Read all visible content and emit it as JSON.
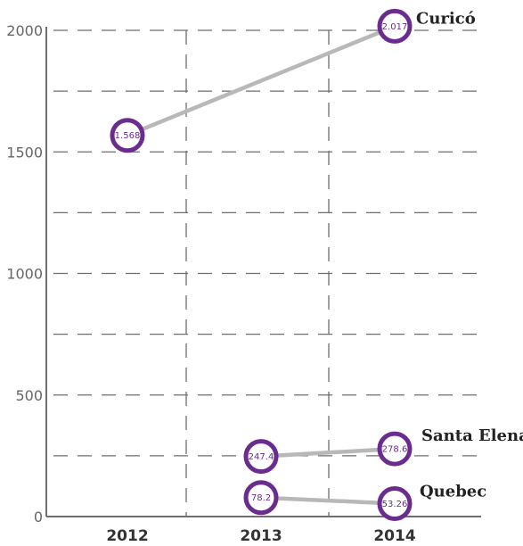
{
  "chart_data": {
    "type": "line",
    "categories": [
      "2012",
      "2013",
      "2014"
    ],
    "ylim": [
      0,
      2000
    ],
    "yticks": [
      0,
      500,
      1000,
      1500,
      2000
    ],
    "grid": true,
    "series": [
      {
        "name": "Curicó",
        "points": [
          {
            "x": "2012",
            "y": 1568,
            "label": "1.568"
          },
          {
            "x": "2014",
            "y": 2017,
            "label": "2.017"
          }
        ]
      },
      {
        "name": "Santa Elena",
        "points": [
          {
            "x": "2013",
            "y": 247.4,
            "label": "247.4"
          },
          {
            "x": "2014",
            "y": 278.6,
            "label": "278.6"
          }
        ]
      },
      {
        "name": "Quebec",
        "points": [
          {
            "x": "2013",
            "y": 78.2,
            "label": "78.2"
          },
          {
            "x": "2014",
            "y": 53.26,
            "label": "53.26"
          }
        ]
      }
    ],
    "colors": {
      "marker_stroke": "#6a2c8e",
      "line": "#b8b8b8",
      "grid": "#6e6e6e"
    }
  }
}
